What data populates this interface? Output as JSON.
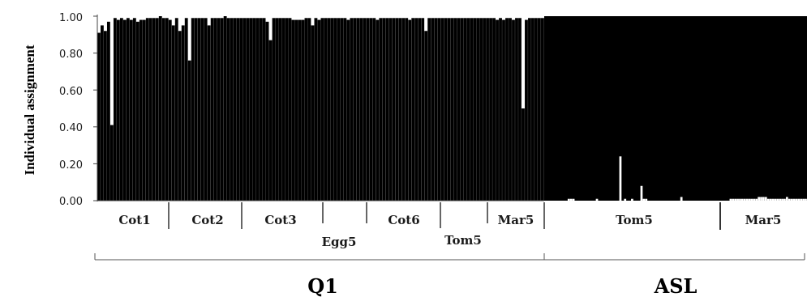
{
  "chart_data": {
    "type": "bar",
    "ylabel": "Individual assignment",
    "ylim": [
      0,
      1
    ],
    "yticks": [
      "0.00",
      "0.20",
      "0.40",
      "0.60",
      "0.80",
      "1.00"
    ],
    "series_colors": {
      "Q1": "#000000",
      "ASL": "#ffffff"
    },
    "background_colors": {
      "Q1": "#ffffff",
      "ASL": "#000000"
    },
    "clusters": [
      "Q1",
      "ASL"
    ],
    "groups": [
      {
        "cluster": "Q1",
        "label": "Cot1",
        "row": 1
      },
      {
        "cluster": "Q1",
        "label": "Cot2",
        "row": 1
      },
      {
        "cluster": "Q1",
        "label": "Cot3",
        "row": 1
      },
      {
        "cluster": "Q1",
        "label": "Egg5",
        "row": 2
      },
      {
        "cluster": "Q1",
        "label": "Cot6",
        "row": 1
      },
      {
        "cluster": "Q1",
        "label": "Tom5",
        "row": 2
      },
      {
        "cluster": "Q1",
        "label": "Mar5",
        "row": 1
      },
      {
        "cluster": "ASL",
        "label": "Tom5",
        "row": 1
      },
      {
        "cluster": "ASL",
        "label": "Mar5",
        "row": 1
      }
    ],
    "q1_values": [
      0.91,
      0.95,
      0.92,
      0.97,
      0.41,
      0.99,
      0.98,
      0.99,
      0.98,
      0.99,
      0.98,
      0.99,
      0.97,
      0.98,
      0.98,
      0.99,
      0.99,
      0.99,
      0.99,
      1.0,
      0.99,
      0.99,
      0.98,
      0.95,
      0.99,
      0.92,
      0.95,
      0.99,
      0.76,
      0.99,
      0.99,
      0.99,
      0.99,
      0.99,
      0.95,
      0.99,
      0.99,
      0.99,
      0.99,
      1.0,
      0.99,
      0.99,
      0.99,
      0.99,
      0.99,
      0.99,
      0.99,
      0.99,
      0.99,
      0.99,
      0.99,
      0.99,
      0.97,
      0.87,
      0.99,
      0.99,
      0.99,
      0.99,
      0.99,
      0.99,
      0.98,
      0.98,
      0.98,
      0.98,
      0.99,
      0.99,
      0.95,
      0.99,
      0.98,
      0.99,
      0.99,
      0.99,
      0.99,
      0.99,
      0.99,
      0.99,
      0.99,
      0.98,
      0.99,
      0.99,
      0.99,
      0.99,
      0.99,
      0.99,
      0.99,
      0.99,
      0.98,
      0.99,
      0.99,
      0.99,
      0.99,
      0.99,
      0.99,
      0.99,
      0.99,
      0.99,
      0.98,
      0.99,
      0.99,
      0.99,
      0.99,
      0.92,
      0.99,
      0.99,
      0.99,
      0.99,
      0.99,
      0.99,
      0.99,
      0.99,
      0.99,
      0.99,
      0.99,
      0.99,
      0.99,
      0.99,
      0.99,
      0.99,
      0.99,
      0.99,
      0.99,
      0.99,
      0.99,
      0.98,
      0.99,
      0.98,
      0.99,
      0.99,
      0.98,
      0.99,
      0.99,
      0.5,
      0.98,
      0.99,
      0.99,
      0.99,
      0.99,
      0.99
    ],
    "asl_values": [
      0.0,
      0.0,
      0.0,
      0.0,
      0.0,
      0.0,
      0.0,
      0.0,
      0.0,
      0.0,
      0.01,
      0.01,
      0.01,
      0.0,
      0.0,
      0.0,
      0.0,
      0.0,
      0.0,
      0.0,
      0.0,
      0.0,
      0.01,
      0.0,
      0.0,
      0.0,
      0.0,
      0.0,
      0.0,
      0.0,
      0.0,
      0.0,
      0.24,
      0.0,
      0.01,
      0.0,
      0.0,
      0.01,
      0.0,
      0.0,
      0.0,
      0.08,
      0.01,
      0.01,
      0.0,
      0.0,
      0.0,
      0.0,
      0.0,
      0.0,
      0.0,
      0.0,
      0.0,
      0.0,
      0.0,
      0.0,
      0.0,
      0.0,
      0.02,
      0.0,
      0.0,
      0.0,
      0.0,
      0.0,
      0.0,
      0.0,
      0.0,
      0.0,
      0.0,
      0.0,
      0.0,
      0.0,
      0.0,
      0.0,
      0.0,
      0.0,
      0.0,
      0.0,
      0.0,
      0.01,
      0.01,
      0.01,
      0.01,
      0.01,
      0.01,
      0.01,
      0.01,
      0.01,
      0.01,
      0.01,
      0.01,
      0.02,
      0.02,
      0.02,
      0.02,
      0.01,
      0.01,
      0.01,
      0.01,
      0.01,
      0.01,
      0.01,
      0.01,
      0.02,
      0.01,
      0.01,
      0.01,
      0.01,
      0.01,
      0.01,
      0.01,
      0.01
    ]
  }
}
